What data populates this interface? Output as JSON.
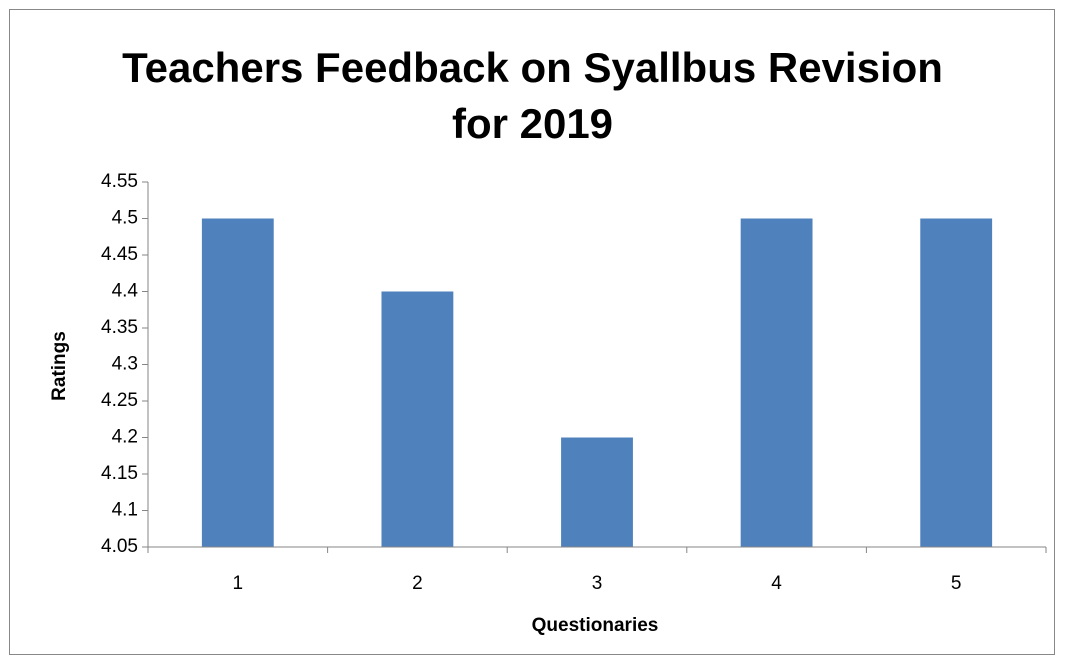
{
  "chart_data": {
    "type": "bar",
    "title": "Teachers Feedback on Syallbus Revision\nfor 2019",
    "x_label": "Questionaries",
    "y_label": "Ratings",
    "categories": [
      "1",
      "2",
      "3",
      "4",
      "5"
    ],
    "values": [
      4.5,
      4.4,
      4.2,
      4.5,
      4.5
    ],
    "color": "#4f81bd",
    "ylim": [
      4.05,
      4.55
    ],
    "yticks": [
      4.05,
      4.1,
      4.15,
      4.2,
      4.25,
      4.3,
      4.35,
      4.4,
      4.45,
      4.5,
      4.55
    ],
    "grid": false
  }
}
